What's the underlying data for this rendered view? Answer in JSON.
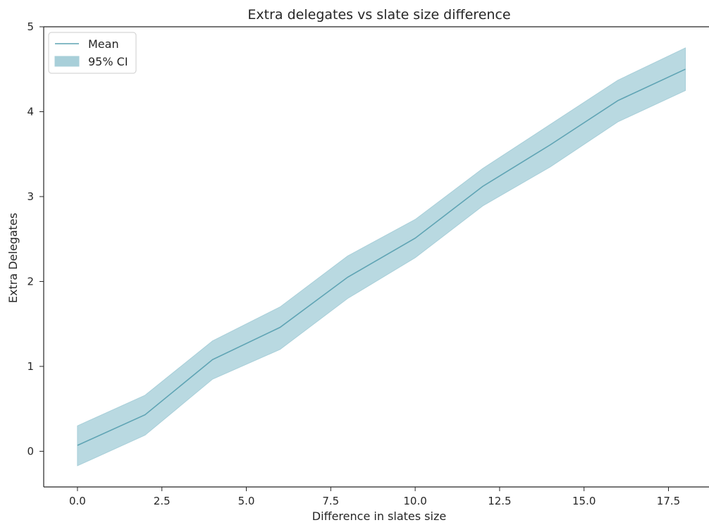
{
  "chart_data": {
    "type": "line",
    "title": "Extra delegates vs slate size difference",
    "xlabel": "Difference in slates size",
    "ylabel": "Extra Delegates",
    "xlim": [
      -1.0,
      18.7
    ],
    "ylim": [
      -0.42,
      5.0
    ],
    "xticks": [
      0.0,
      2.5,
      5.0,
      7.5,
      10.0,
      12.5,
      15.0,
      17.5
    ],
    "xtick_labels": [
      "0.0",
      "2.5",
      "5.0",
      "7.5",
      "10.0",
      "12.5",
      "15.0",
      "17.5"
    ],
    "yticks": [
      0,
      1,
      2,
      3,
      4,
      5
    ],
    "ytick_labels": [
      "0",
      "1",
      "2",
      "3",
      "4",
      "5"
    ],
    "grid": false,
    "legend_position": "top-left",
    "x": [
      0,
      2,
      4,
      6,
      8,
      10,
      12,
      14,
      16,
      18
    ],
    "series": [
      {
        "name": "Mean",
        "kind": "line",
        "color": "#5fa4b4",
        "values": [
          0.07,
          0.43,
          1.08,
          1.46,
          2.05,
          2.51,
          3.12,
          3.61,
          4.13,
          4.5
        ]
      },
      {
        "name": "95% CI",
        "kind": "band",
        "color": "#a8cfd9",
        "lower": [
          -0.17,
          0.19,
          0.85,
          1.2,
          1.8,
          2.28,
          2.89,
          3.35,
          3.88,
          4.25
        ],
        "upper": [
          0.3,
          0.66,
          1.3,
          1.7,
          2.3,
          2.73,
          3.33,
          3.85,
          4.37,
          4.75
        ]
      }
    ]
  }
}
